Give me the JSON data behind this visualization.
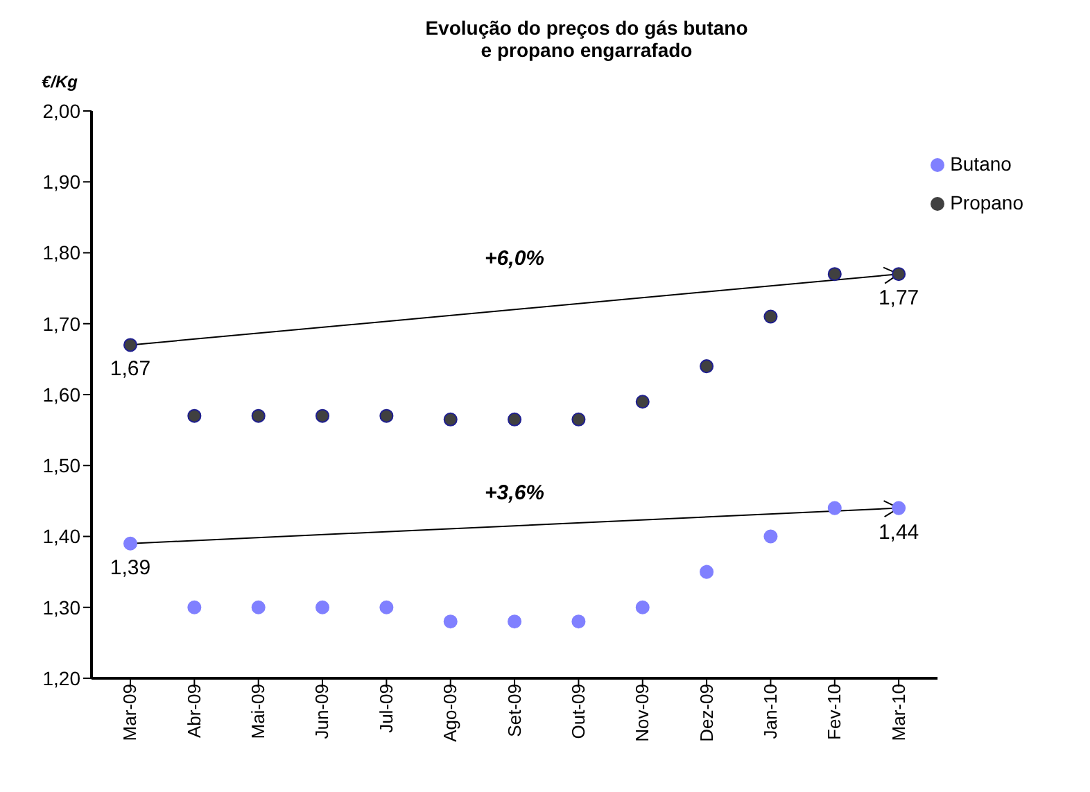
{
  "chart_data": {
    "type": "scatter",
    "title": "Evolução do preços do gás butano\ne propano engarrafado",
    "ylabel": "€/Kg",
    "categories": [
      "Mar-09",
      "Abr-09",
      "Mai-09",
      "Jun-09",
      "Jul-09",
      "Ago-09",
      "Set-09",
      "Out-09",
      "Nov-09",
      "Dez-09",
      "Jan-10",
      "Fev-10",
      "Mar-10"
    ],
    "series": [
      {
        "name": "Butano",
        "color": "#8080ff",
        "values": [
          1.39,
          1.3,
          1.3,
          1.3,
          1.3,
          1.28,
          1.28,
          1.28,
          1.3,
          1.35,
          1.4,
          1.44,
          1.44
        ],
        "value_labels": [
          "1,39",
          null,
          null,
          null,
          null,
          null,
          null,
          null,
          null,
          null,
          null,
          null,
          "1,44"
        ]
      },
      {
        "name": "Propano",
        "color": "#404040",
        "values": [
          1.67,
          1.57,
          1.57,
          1.57,
          1.57,
          1.565,
          1.565,
          1.565,
          1.59,
          1.64,
          1.71,
          1.77,
          1.77
        ],
        "value_labels": [
          "1,67",
          null,
          null,
          null,
          null,
          null,
          null,
          null,
          null,
          null,
          null,
          null,
          "1,77"
        ]
      }
    ],
    "annotations": [
      "+3,6%",
      "+6,0%"
    ],
    "ylim": [
      1.2,
      2.0
    ],
    "yticks": [
      {
        "value": 1.2,
        "label": "1,20"
      },
      {
        "value": 1.3,
        "label": "1,30"
      },
      {
        "value": 1.4,
        "label": "1,40"
      },
      {
        "value": 1.5,
        "label": "1,50"
      },
      {
        "value": 1.6,
        "label": "1,60"
      },
      {
        "value": 1.7,
        "label": "1,70"
      },
      {
        "value": 1.8,
        "label": "1,80"
      },
      {
        "value": 1.9,
        "label": "1,90"
      },
      {
        "value": 2.0,
        "label": "2,00"
      }
    ],
    "grid": false,
    "legend": "top right",
    "marker": "circle"
  }
}
